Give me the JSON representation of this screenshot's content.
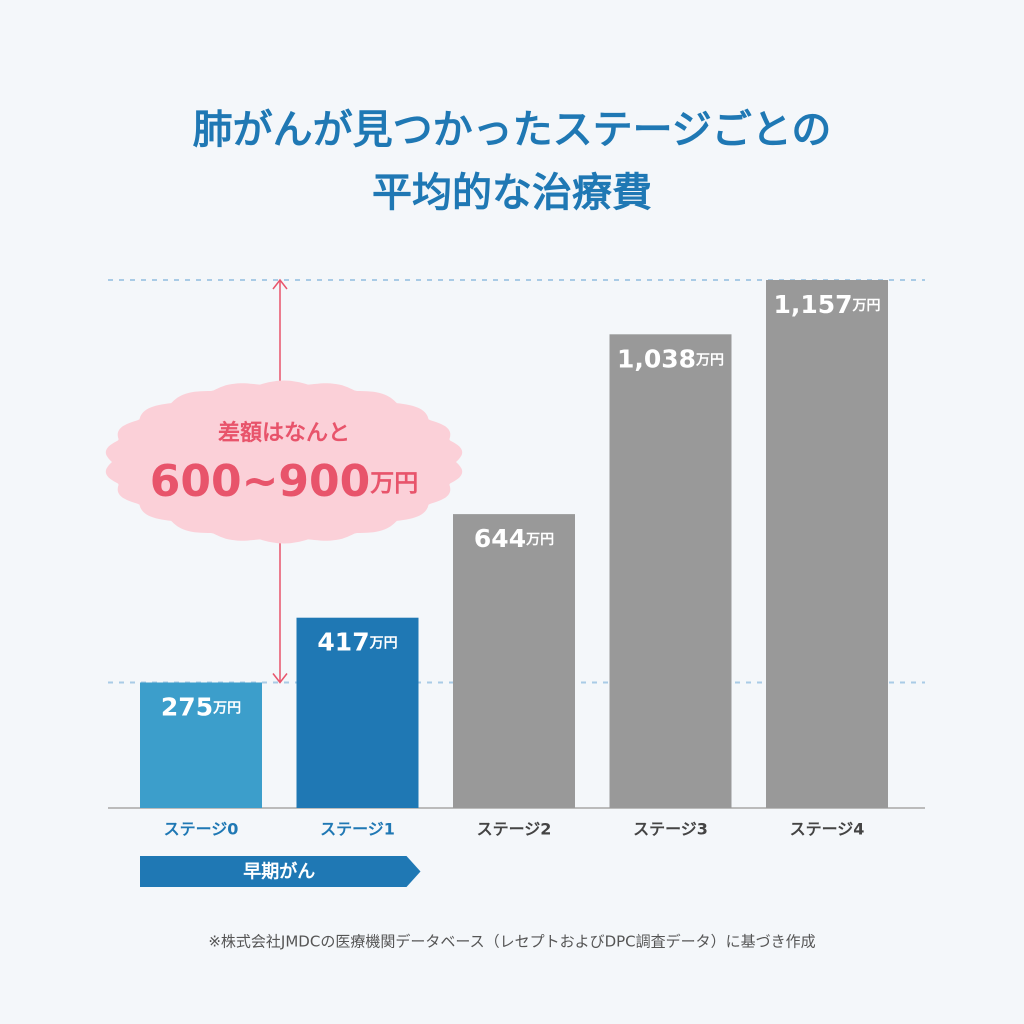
{
  "chart_data": {
    "type": "bar",
    "title": [
      "肺がんが見つかったステージごとの",
      "平均的な治療費"
    ],
    "categories": [
      "ステージ0",
      "ステージ1",
      "ステージ2",
      "ステージ3",
      "ステージ4"
    ],
    "values": [
      275,
      417,
      644,
      1038,
      1157
    ],
    "value_labels": [
      "275万円",
      "417万円",
      "644万円",
      "1,038万円",
      "1,157万円"
    ],
    "colors": [
      "#3c9ecb",
      "#1f78b4",
      "#999999",
      "#999999",
      "#999999"
    ],
    "category_colors": [
      "#1f78b4",
      "#1f78b4",
      "#444444",
      "#444444",
      "#444444"
    ],
    "annotation": {
      "text": "差額はなんと",
      "range_label": "600~900万円",
      "color": "#e8546b",
      "cloud_color": "#fbd0d8"
    },
    "group_label": "早期がん",
    "group_color": "#1f78b4",
    "footnote": "※株式会社JMDCの医療機関データベース（レセプトおよびDPC調査データ）に基づき作成"
  }
}
